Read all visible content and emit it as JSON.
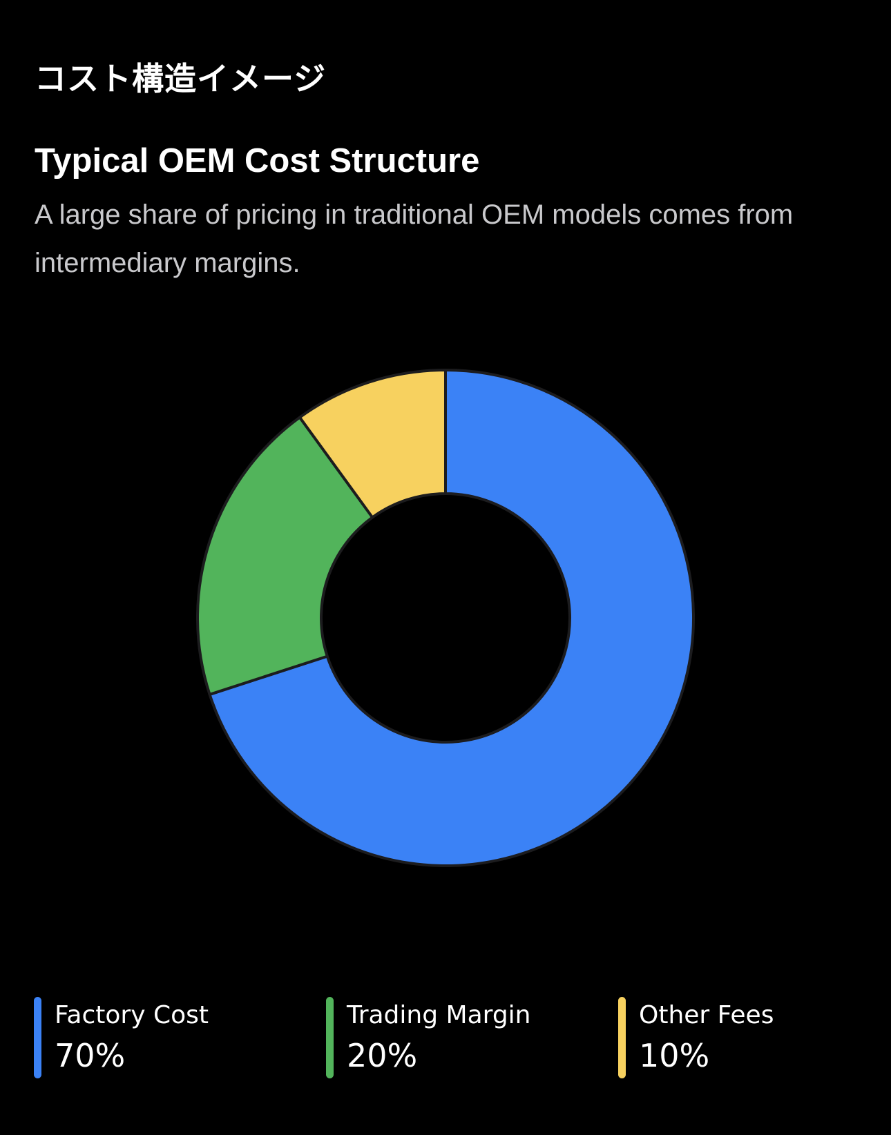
{
  "header": {
    "section_title": "コスト構造イメージ"
  },
  "chart_data": {
    "type": "pie",
    "title": "Typical OEM Cost Structure",
    "subtitle": "A large share of pricing in traditional OEM models comes from intermediary margins.",
    "categories": [
      "Factory Cost",
      "Trading Margin",
      "Other Fees"
    ],
    "values": [
      70,
      20,
      10
    ],
    "unit": "%",
    "colors": [
      "#3B82F6",
      "#52B45B",
      "#F7D15F"
    ],
    "donut": true,
    "legend_position": "bottom",
    "legend": [
      {
        "label": "Factory Cost",
        "value": "70%",
        "color": "#3B82F6"
      },
      {
        "label": "Trading Margin",
        "value": "20%",
        "color": "#52B45B"
      },
      {
        "label": "Other Fees",
        "value": "10%",
        "color": "#F7D15F"
      }
    ]
  }
}
